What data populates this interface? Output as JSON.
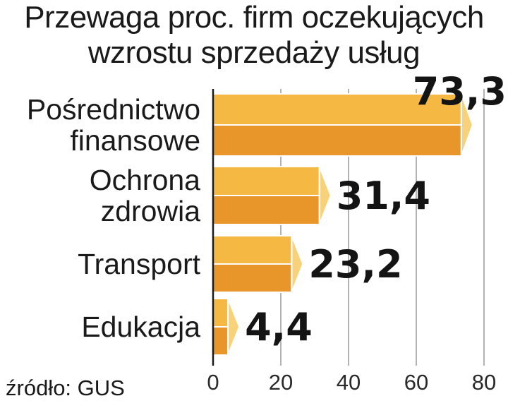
{
  "chart_data": {
    "type": "bar",
    "orientation": "horizontal",
    "title_lines": [
      "Przewaga proc. firm oczekujących",
      "wzrostu sprzedaży usług"
    ],
    "categories": [
      [
        "Pośrednictwo",
        "finansowe"
      ],
      [
        "Ochrona",
        "zdrowia"
      ],
      [
        "Transport"
      ],
      [
        "Edukacja"
      ]
    ],
    "values": [
      73.3,
      31.4,
      23.2,
      4.4
    ],
    "value_labels": [
      "73,3",
      "31,4",
      "23,2",
      "4,4"
    ],
    "xticks": [
      0,
      20,
      40,
      60,
      80
    ],
    "xlim": [
      0,
      80
    ],
    "grid": true,
    "source": "źródło: GUS",
    "colors": {
      "bar_top": "#f4b843",
      "bar_bottom": "#e8962a",
      "bar_cap": "#f8d27a",
      "bar_edge": "#ffffff",
      "grid": "#9a9a9a",
      "axis": "#1a1a1a"
    }
  }
}
